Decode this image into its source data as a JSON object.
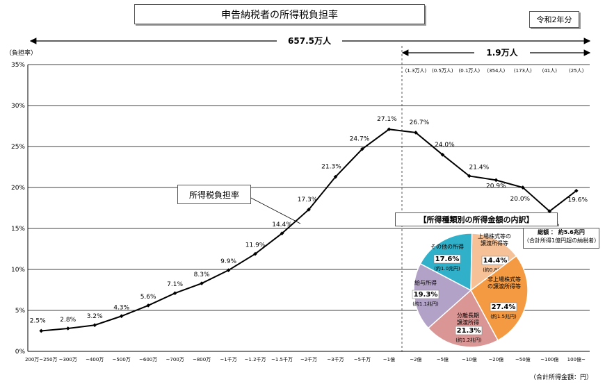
{
  "header": {
    "title": "申告納税者の所得税負担率",
    "period": "令和2年分"
  },
  "span_labels": {
    "total_count": "657.5万人",
    "high_income_count": "1.9万人"
  },
  "counts_above": [
    "(1.3万人)",
    "(0.5万人)",
    "(0.1万人)",
    "(354人)",
    "(173人)",
    "(41人)",
    "(25人)"
  ],
  "series_label": "所得税負担率",
  "footer_note": "（合計所得金額：円）",
  "chart_data": {
    "type": "line",
    "ylabel": "（負担率）",
    "ylim": [
      0,
      35
    ],
    "yticks": [
      "0%",
      "5%",
      "10%",
      "15%",
      "20%",
      "25%",
      "30%",
      "35%"
    ],
    "grid": true,
    "categories": [
      "200万~250万",
      "~300万",
      "~400万",
      "~500万",
      "~600万",
      "~700万",
      "~800万",
      "~1千万",
      "~1.2千万",
      "~1.5千万",
      "~2千万",
      "~3千万",
      "~5千万",
      "~1億",
      "~2億",
      "~5億",
      "~10億",
      "~20億",
      "~50億",
      "~100億",
      "100億~"
    ],
    "values": [
      2.5,
      2.8,
      3.2,
      4.3,
      5.6,
      7.1,
      8.3,
      9.9,
      11.9,
      14.4,
      17.3,
      21.3,
      24.7,
      27.1,
      26.7,
      24.0,
      21.4,
      20.9,
      20.0,
      17.1,
      19.6
    ],
    "value_labels": [
      "2.5%",
      "2.8%",
      "3.2%",
      "4.3%",
      "5.6%",
      "7.1%",
      "8.3%",
      "9.9%",
      "11.9%",
      "14.4%",
      "17.3%",
      "21.3%",
      "24.7%",
      "27.1%",
      "26.7%",
      "24.0%",
      "21.4%",
      "20.9%",
      "20.0%",
      "17.1%",
      "19.6%"
    ]
  },
  "pie": {
    "title": "【所得種類別の所得金額の内訳】",
    "total_label": "総額 ： 約5.6兆円",
    "total_note": "（合計所得1億円超の納税者）",
    "slices": [
      {
        "name": "上場株式等の譲渡所得等",
        "pct": 14.4,
        "pct_label": "14.4%",
        "amount": "(約0.8兆円)",
        "color": "#f6c197"
      },
      {
        "name": "非上場株式等の譲渡所得等",
        "pct": 27.4,
        "pct_label": "27.4%",
        "amount": "(約1.5兆円)",
        "color": "#f39a42"
      },
      {
        "name": "分離長期譲渡所得",
        "pct": 21.3,
        "pct_label": "21.3%",
        "amount": "(約1.2兆円)",
        "color": "#d99694"
      },
      {
        "name": "給与所得",
        "pct": 19.3,
        "pct_label": "19.3%",
        "amount": "(約1.1兆円)",
        "color": "#b3a2c7"
      },
      {
        "name": "その他の所得",
        "pct": 17.6,
        "pct_label": "17.6%",
        "amount": "(約1.0兆円)",
        "color": "#31b0c9"
      }
    ]
  }
}
